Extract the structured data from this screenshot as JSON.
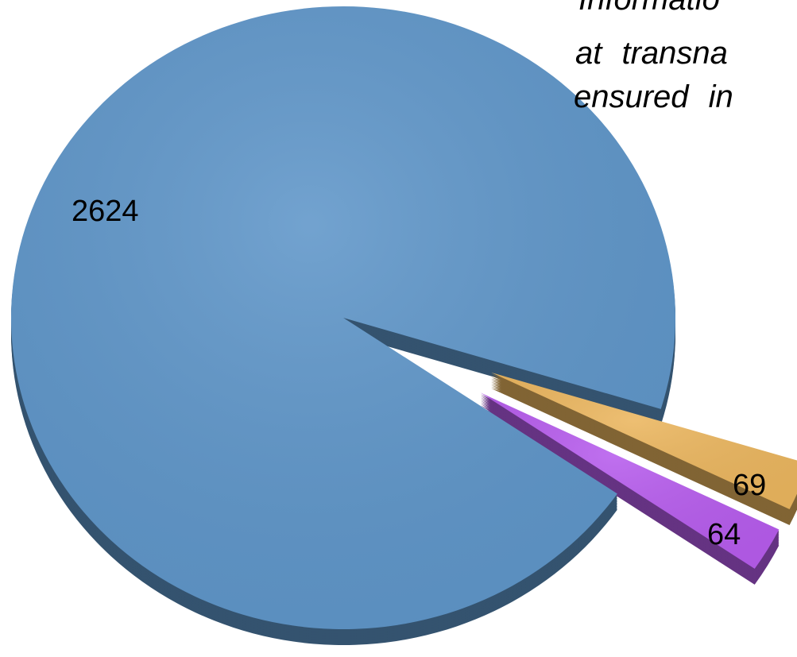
{
  "chart_data": {
    "type": "pie",
    "annotation": [
      "Informatio",
      "at transna",
      "ensured in"
    ],
    "categories": [
      null,
      null,
      null
    ],
    "values": [
      2624,
      69,
      64
    ],
    "colors": [
      "#5f96c9",
      "#ebb65f",
      "#b75ded"
    ]
  }
}
